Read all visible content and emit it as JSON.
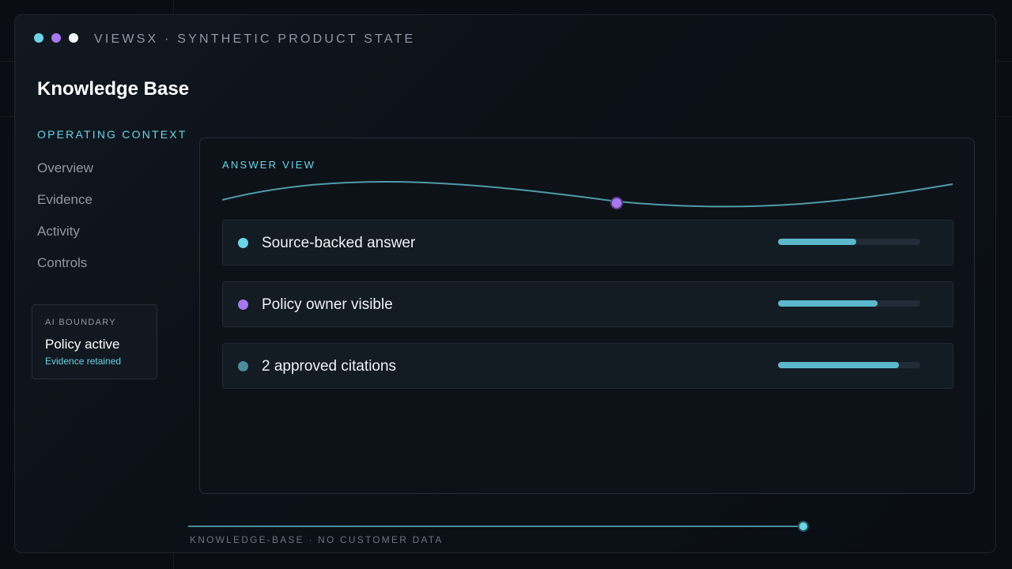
{
  "window": {
    "dots": [
      {
        "color": "#6ed3e6"
      },
      {
        "color": "#a878f0"
      },
      {
        "color": "#f2f4f7"
      }
    ],
    "title": "VIEWSX · SYNTHETIC PRODUCT STATE"
  },
  "page": {
    "title": "Knowledge Base"
  },
  "sidebar": {
    "section_label": "OPERATING CONTEXT",
    "items": [
      {
        "label": "Overview"
      },
      {
        "label": "Evidence"
      },
      {
        "label": "Activity"
      },
      {
        "label": "Controls"
      }
    ],
    "boundary": {
      "label": "AI BOUNDARY",
      "status": "Policy active",
      "sub": "Evidence retained"
    }
  },
  "answer_view": {
    "label": "ANSWER VIEW",
    "rows": [
      {
        "label": "Source-backed answer",
        "dot_color": "#6ed3e6",
        "value": 0.55
      },
      {
        "label": "Policy owner visible",
        "dot_color": "#a878f0",
        "value": 0.7
      },
      {
        "label": "2 approved citations",
        "dot_color": "#4a8c9a",
        "value": 0.85
      }
    ]
  },
  "footer": {
    "label": "KNOWLEDGE-BASE · NO CUSTOMER DATA",
    "progress": 0.995
  },
  "colors": {
    "accent": "#6ed3e6",
    "purple": "#a878f0",
    "bar": "#5bb8cc"
  }
}
